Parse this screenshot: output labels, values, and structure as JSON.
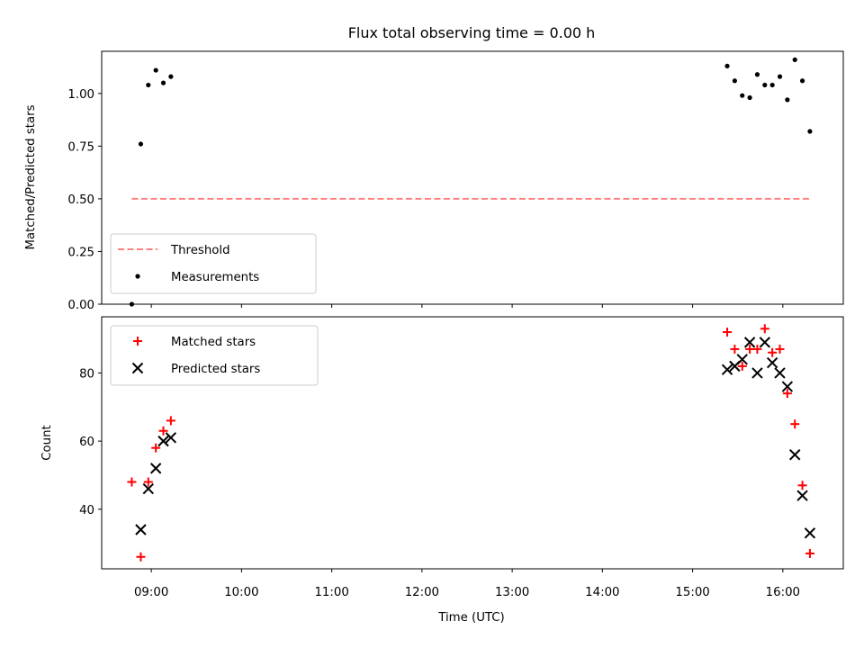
{
  "chart_data": [
    {
      "type": "scatter",
      "title": "Flux total observing time = 0.00 h",
      "xlabel": "",
      "ylabel": "Matched/Predicted stars",
      "ylim": [
        0,
        1.2
      ],
      "yticks": [
        0.0,
        0.25,
        0.5,
        0.75,
        1.0
      ],
      "ytick_labels": [
        "0.00",
        "0.25",
        "0.50",
        "0.75",
        "1.00"
      ],
      "xlim_hours": [
        8.45,
        16.67
      ],
      "grid": false,
      "legend_position": "lower-left",
      "series": [
        {
          "name": "Threshold",
          "kind": "line",
          "style": "dashed",
          "color": "#ff8080",
          "x": [
            "08:47",
            "16:18"
          ],
          "y": [
            0.5,
            0.5
          ]
        },
        {
          "name": "Measurements",
          "kind": "scatter",
          "marker": "dot",
          "color": "#000000",
          "x": [
            "08:47",
            "08:53",
            "08:58",
            "09:03",
            "09:08",
            "09:13",
            "15:23",
            "15:28",
            "15:33",
            "15:38",
            "15:43",
            "15:48",
            "15:53",
            "15:58",
            "16:03",
            "16:08",
            "16:13",
            "16:18"
          ],
          "y": [
            0.0,
            0.76,
            1.04,
            1.11,
            1.05,
            1.08,
            1.13,
            1.06,
            0.99,
            0.98,
            1.09,
            1.04,
            1.04,
            1.08,
            0.97,
            1.16,
            1.06,
            0.82
          ]
        }
      ]
    },
    {
      "type": "scatter",
      "title": "",
      "xlabel": "Time (UTC)",
      "ylabel": "Count",
      "ylim": [
        22.5,
        96.5
      ],
      "yticks": [
        40,
        60,
        80
      ],
      "ytick_labels": [
        "40",
        "60",
        "80"
      ],
      "xticks": [
        "09:00",
        "10:00",
        "11:00",
        "12:00",
        "13:00",
        "14:00",
        "15:00",
        "16:00"
      ],
      "xlim_hours": [
        8.45,
        16.67
      ],
      "grid": false,
      "legend_position": "upper-left",
      "series": [
        {
          "name": "Matched stars",
          "kind": "scatter",
          "marker": "plus",
          "color": "#ff0000",
          "x": [
            "08:47",
            "08:53",
            "08:58",
            "09:03",
            "09:08",
            "09:13",
            "15:23",
            "15:28",
            "15:33",
            "15:38",
            "15:43",
            "15:48",
            "15:53",
            "15:58",
            "16:03",
            "16:08",
            "16:13",
            "16:18"
          ],
          "y": [
            48,
            26,
            48,
            58,
            63,
            66,
            92,
            87,
            82,
            87,
            87,
            93,
            86,
            87,
            74,
            65,
            47,
            27
          ]
        },
        {
          "name": "Predicted stars",
          "kind": "scatter",
          "marker": "x",
          "color": "#000000",
          "x": [
            "08:53",
            "08:58",
            "09:03",
            "09:08",
            "09:13",
            "15:23",
            "15:28",
            "15:33",
            "15:38",
            "15:43",
            "15:48",
            "15:53",
            "15:58",
            "16:03",
            "16:08",
            "16:13",
            "16:18"
          ],
          "y": [
            34,
            46,
            52,
            60,
            61,
            81,
            82,
            84,
            89,
            80,
            89,
            83,
            80,
            76,
            56,
            44,
            33
          ]
        }
      ]
    }
  ]
}
